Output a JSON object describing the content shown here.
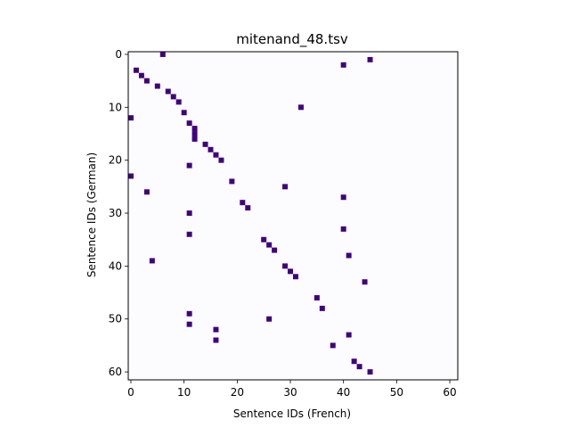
{
  "chart_data": {
    "type": "heatmap",
    "title": "mitenand_48.tsv",
    "xlabel": "Sentence IDs (French)",
    "ylabel": "Sentence IDs (German)",
    "xlim": [
      -0.5,
      61.5
    ],
    "ylim": [
      61.5,
      -0.5
    ],
    "x_ticks": [
      0,
      10,
      20,
      30,
      40,
      50,
      60
    ],
    "y_ticks": [
      0,
      10,
      20,
      30,
      40,
      50,
      60
    ],
    "y_inverted": true,
    "grid": false,
    "background_color": "#fcfbfd",
    "cell_color": "#3f007d",
    "frame_color": "#000000",
    "cells": [
      {
        "x": 6,
        "y": 0
      },
      {
        "x": 40,
        "y": 2
      },
      {
        "x": 45,
        "y": 1
      },
      {
        "x": 1,
        "y": 3
      },
      {
        "x": 2,
        "y": 4
      },
      {
        "x": 3,
        "y": 5
      },
      {
        "x": 5,
        "y": 6
      },
      {
        "x": 7,
        "y": 7
      },
      {
        "x": 8,
        "y": 8
      },
      {
        "x": 9,
        "y": 9
      },
      {
        "x": 32,
        "y": 10
      },
      {
        "x": 10,
        "y": 11
      },
      {
        "x": 0,
        "y": 12
      },
      {
        "x": 11,
        "y": 13
      },
      {
        "x": 12,
        "y": 14
      },
      {
        "x": 12,
        "y": 15
      },
      {
        "x": 12,
        "y": 16
      },
      {
        "x": 14,
        "y": 17
      },
      {
        "x": 15,
        "y": 18
      },
      {
        "x": 16,
        "y": 19
      },
      {
        "x": 17,
        "y": 20
      },
      {
        "x": 11,
        "y": 21
      },
      {
        "x": 0,
        "y": 23
      },
      {
        "x": 19,
        "y": 24
      },
      {
        "x": 29,
        "y": 25
      },
      {
        "x": 3,
        "y": 26
      },
      {
        "x": 40,
        "y": 27
      },
      {
        "x": 21,
        "y": 28
      },
      {
        "x": 22,
        "y": 29
      },
      {
        "x": 11,
        "y": 30
      },
      {
        "x": 40,
        "y": 33
      },
      {
        "x": 11,
        "y": 34
      },
      {
        "x": 25,
        "y": 35
      },
      {
        "x": 26,
        "y": 36
      },
      {
        "x": 27,
        "y": 37
      },
      {
        "x": 41,
        "y": 38
      },
      {
        "x": 4,
        "y": 39
      },
      {
        "x": 29,
        "y": 40
      },
      {
        "x": 30,
        "y": 41
      },
      {
        "x": 31,
        "y": 42
      },
      {
        "x": 44,
        "y": 43
      },
      {
        "x": 35,
        "y": 46
      },
      {
        "x": 36,
        "y": 48
      },
      {
        "x": 11,
        "y": 49
      },
      {
        "x": 26,
        "y": 50
      },
      {
        "x": 11,
        "y": 51
      },
      {
        "x": 16,
        "y": 52
      },
      {
        "x": 41,
        "y": 53
      },
      {
        "x": 16,
        "y": 54
      },
      {
        "x": 38,
        "y": 55
      },
      {
        "x": 42,
        "y": 58
      },
      {
        "x": 43,
        "y": 59
      },
      {
        "x": 45,
        "y": 60
      }
    ]
  }
}
